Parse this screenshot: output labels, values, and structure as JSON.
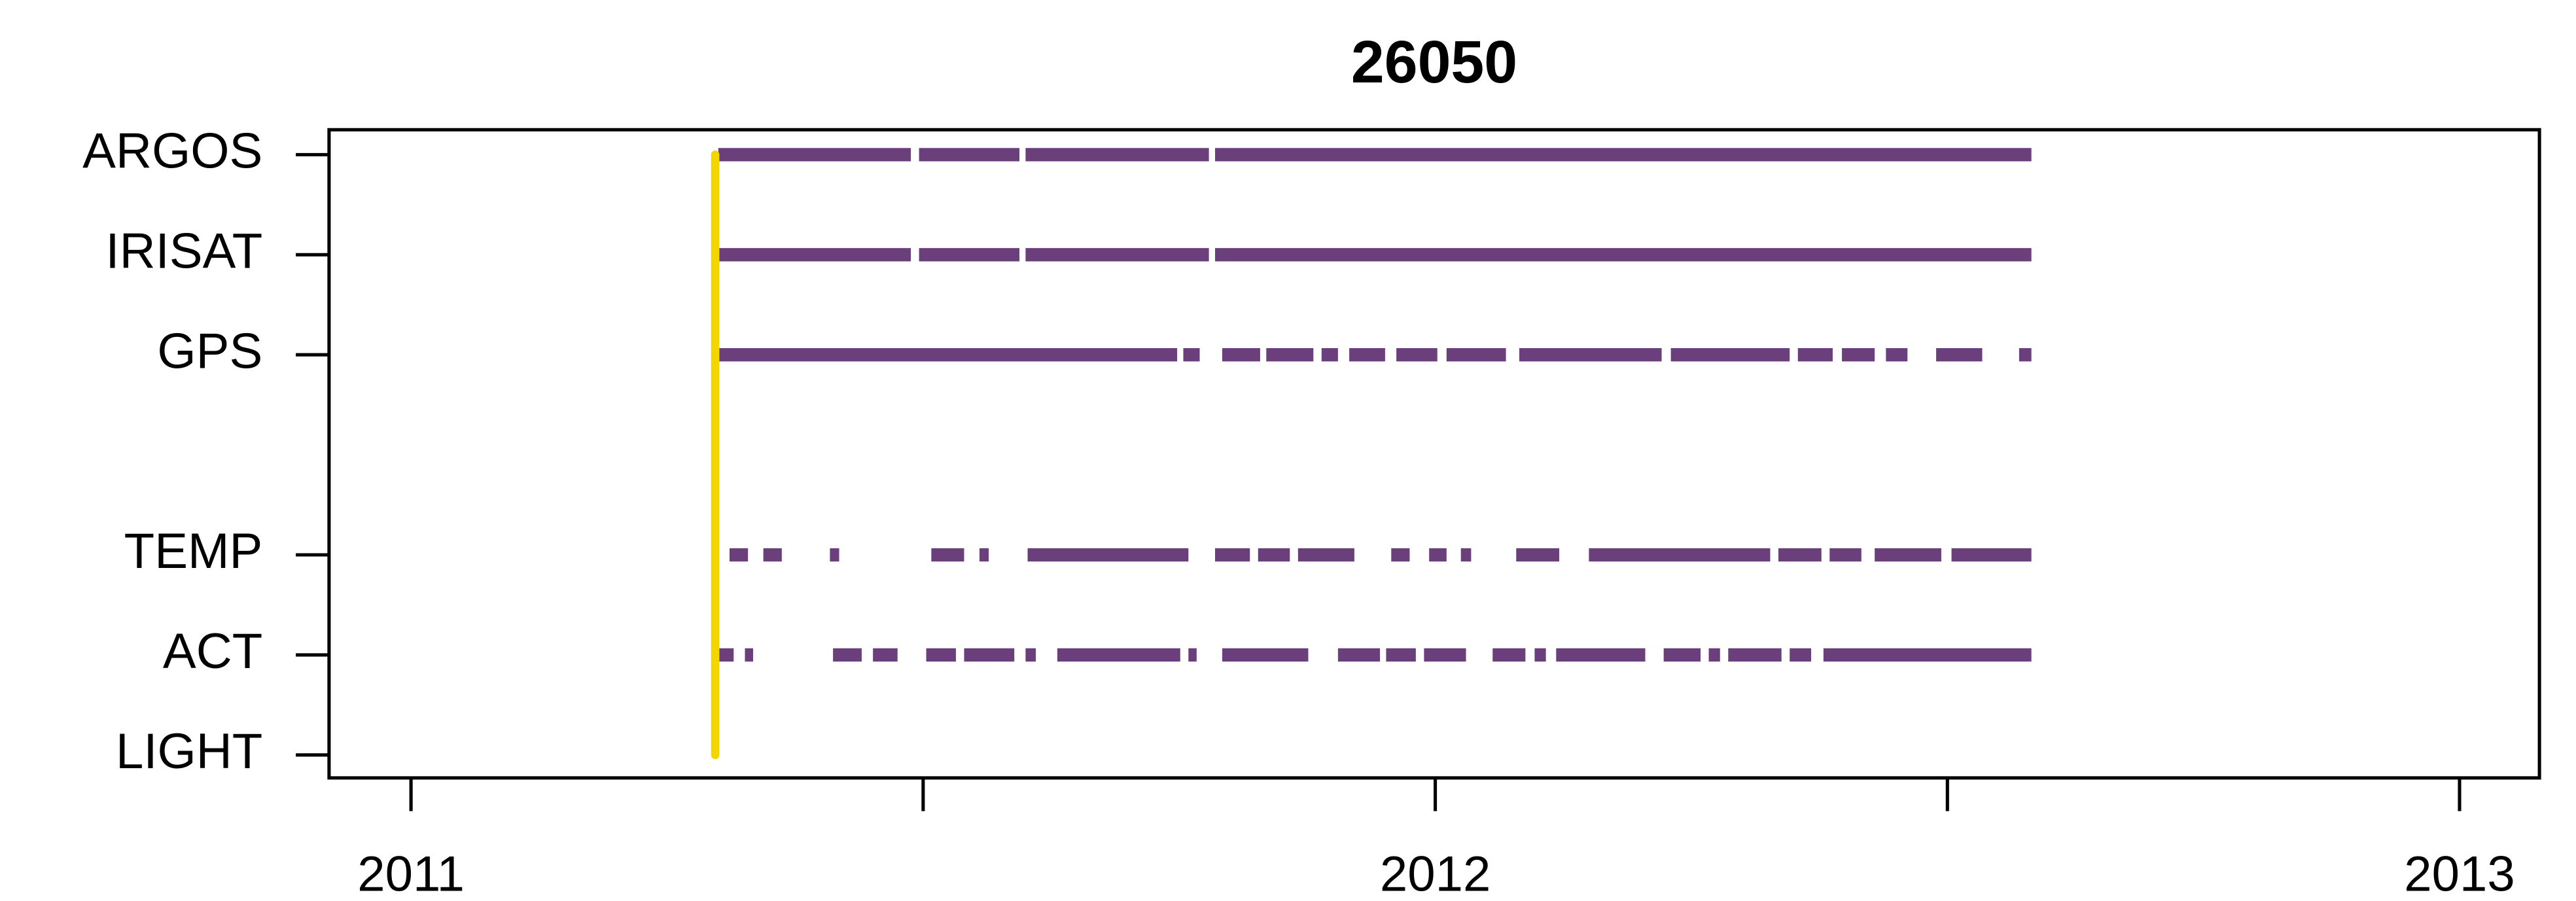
{
  "chart_data": {
    "type": "timeline",
    "title": "26050",
    "categories": [
      "ARGOS",
      "IRISAT",
      "GPS",
      null,
      "TEMP",
      "ACT",
      "LIGHT"
    ],
    "color": "#6b3f7c",
    "deploy_date": 2011.297,
    "deploy_color": "#f2d600",
    "segments": [
      [
        [
          2011.3,
          2011.488
        ],
        [
          2011.496,
          2011.594
        ],
        [
          2011.6,
          2011.779
        ],
        [
          2011.785,
          2012.582
        ]
      ],
      [
        [
          2011.3,
          2011.488
        ],
        [
          2011.496,
          2011.594
        ],
        [
          2011.6,
          2011.779
        ],
        [
          2011.785,
          2012.582
        ]
      ],
      [
        [
          2011.3,
          2011.748
        ],
        [
          2011.754,
          2011.77
        ],
        [
          2011.792,
          2011.829
        ],
        [
          2011.835,
          2011.881
        ],
        [
          2011.889,
          2011.905
        ],
        [
          2011.916,
          2011.951
        ],
        [
          2011.962,
          2012.002
        ],
        [
          2012.011,
          2012.069
        ],
        [
          2012.082,
          2012.221
        ],
        [
          2012.23,
          2012.346
        ],
        [
          2012.354,
          2012.388
        ],
        [
          2012.397,
          2012.429
        ],
        [
          2012.44,
          2012.461
        ],
        [
          2012.489,
          2012.534
        ],
        [
          2012.57,
          2012.582
        ]
      ],
      [],
      [
        [
          2011.311,
          2011.329
        ],
        [
          2011.344,
          2011.362
        ],
        [
          2011.409,
          2011.418
        ],
        [
          2011.508,
          2011.54
        ],
        [
          2011.555,
          2011.564
        ],
        [
          2011.602,
          2011.759
        ],
        [
          2011.785,
          2011.819
        ],
        [
          2011.827,
          2011.858
        ],
        [
          2011.866,
          2011.921
        ],
        [
          2011.957,
          2011.975
        ],
        [
          2011.994,
          2012.011
        ],
        [
          2012.025,
          2012.035
        ],
        [
          2012.079,
          2012.121
        ],
        [
          2012.15,
          2012.327
        ],
        [
          2012.335,
          2012.377
        ],
        [
          2012.385,
          2012.416
        ],
        [
          2012.429,
          2012.494
        ],
        [
          2012.504,
          2012.582
        ]
      ],
      [
        [
          2011.3,
          2011.315
        ],
        [
          2011.326,
          2011.334
        ],
        [
          2011.412,
          2011.44
        ],
        [
          2011.451,
          2011.475
        ],
        [
          2011.503,
          2011.532
        ],
        [
          2011.54,
          2011.589
        ],
        [
          2011.6,
          2011.61
        ],
        [
          2011.631,
          2011.751
        ],
        [
          2011.759,
          2011.767
        ],
        [
          2011.792,
          2011.876
        ],
        [
          2011.905,
          2011.946
        ],
        [
          2011.952,
          2011.981
        ],
        [
          2011.989,
          2012.03
        ],
        [
          2012.056,
          2012.088
        ],
        [
          2012.097,
          2012.108
        ],
        [
          2012.118,
          2012.205
        ],
        [
          2012.223,
          2012.259
        ],
        [
          2012.267,
          2012.278
        ],
        [
          2012.286,
          2012.338
        ],
        [
          2012.346,
          2012.367
        ],
        [
          2012.379,
          2012.582
        ]
      ],
      []
    ],
    "xlim": [
      2010.92,
      2013.078
    ],
    "xticks": [
      2011,
      2012,
      2013
    ],
    "xminor_ticks": [
      2011.5,
      2012.5
    ]
  }
}
